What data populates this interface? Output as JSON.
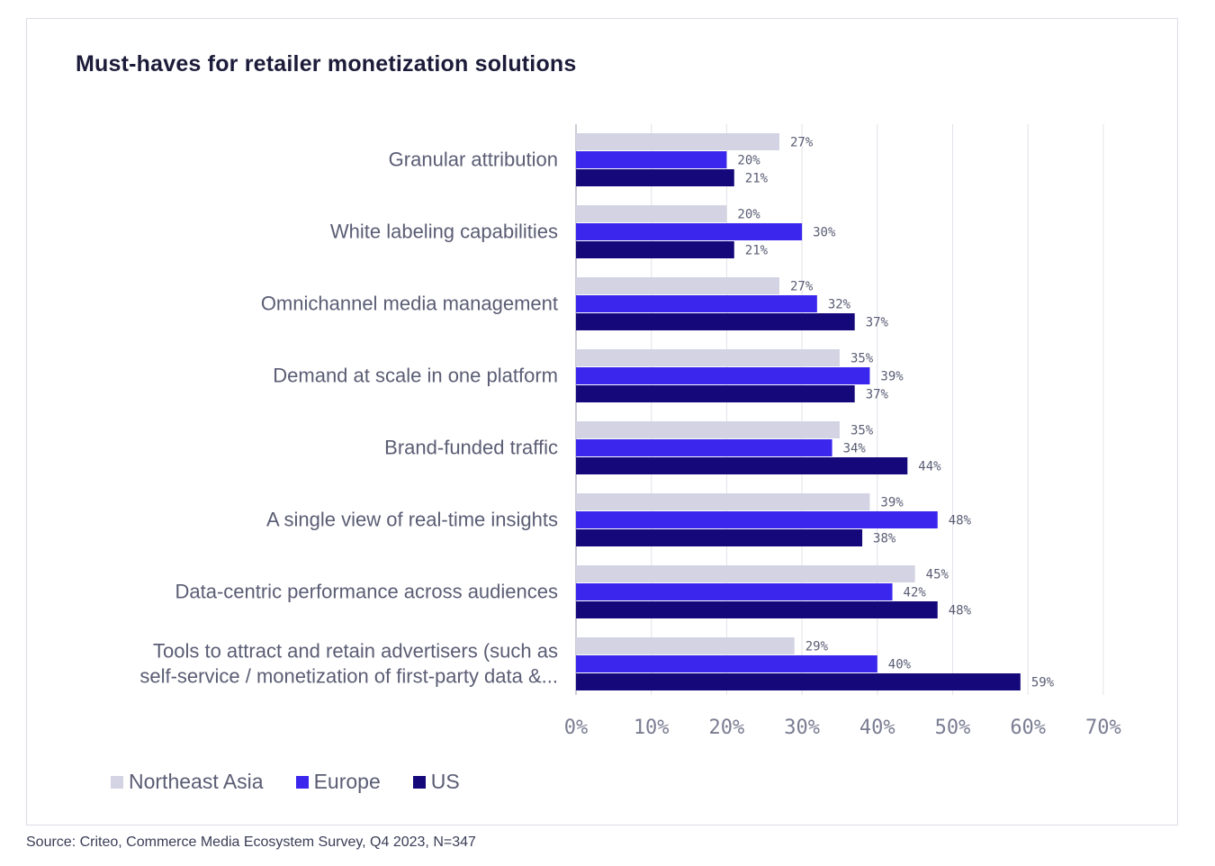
{
  "title": "Must-haves for retailer monetization solutions",
  "source": "Source: Criteo, Commerce Media Ecosystem Survey, Q4 2023, N=347",
  "colors": {
    "northeast_asia": "#d3d3e3",
    "europe": "#3a26ec",
    "us": "#14087a",
    "grid": "#e2e2ea",
    "axis": "#9a9ab0"
  },
  "legend": [
    "Northeast Asia",
    "Europe",
    "US"
  ],
  "chart_data": {
    "type": "bar",
    "orientation": "horizontal",
    "title": "Must-haves for retailer monetization solutions",
    "categories": [
      [
        "Granular attribution"
      ],
      [
        "White labeling capabilities"
      ],
      [
        "Omnichannel media management"
      ],
      [
        "Demand at scale in one platform"
      ],
      [
        "Brand-funded traffic"
      ],
      [
        "A single view of real-time insights"
      ],
      [
        "Data-centric performance across audiences"
      ],
      [
        "Tools to attract and retain advertisers (such as",
        "self-service / monetization of first-party data &..."
      ]
    ],
    "series": [
      {
        "name": "Northeast Asia",
        "values": [
          27,
          20,
          27,
          35,
          35,
          39,
          45,
          29
        ]
      },
      {
        "name": "Europe",
        "values": [
          20,
          30,
          32,
          39,
          34,
          48,
          42,
          40
        ]
      },
      {
        "name": "US",
        "values": [
          21,
          21,
          37,
          37,
          44,
          38,
          48,
          59
        ]
      }
    ],
    "value_format": "{v}%",
    "xlim": [
      0,
      70
    ],
    "xticks": [
      "0%",
      "10%",
      "20%",
      "30%",
      "40%",
      "50%",
      "60%",
      "70%"
    ],
    "grid": true,
    "legend_position": "bottom-left"
  }
}
